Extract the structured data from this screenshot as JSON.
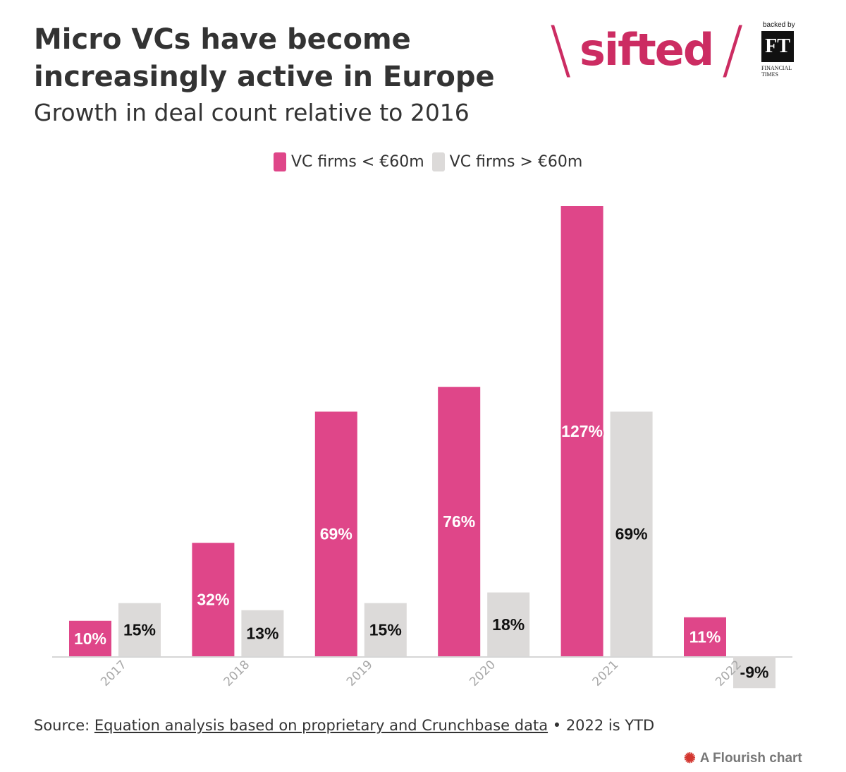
{
  "title": "Micro VCs have become increasingly active in Europe",
  "subtitle": "Growth in deal count relative to 2016",
  "brand": {
    "wordmark": "sifted",
    "backed_by": "backed by",
    "ft_logo": "FT",
    "ft_name": "FINANCIAL TIMES"
  },
  "chart_data": {
    "type": "bar",
    "categories": [
      "2017",
      "2018",
      "2019",
      "2020",
      "2021",
      "2022"
    ],
    "series": [
      {
        "name": "VC firms < €60m",
        "values": [
          10,
          32,
          69,
          76,
          127,
          11
        ],
        "labels": [
          "10%",
          "32%",
          "69%",
          "76%",
          "127%",
          "11%"
        ],
        "color": "#df4689"
      },
      {
        "name": "VC firms > €60m",
        "values": [
          15,
          13,
          15,
          18,
          69,
          -9
        ],
        "labels": [
          "15%",
          "13%",
          "15%",
          "18%",
          "69%",
          "-9%"
        ],
        "color": "#dcdad9"
      }
    ],
    "xlabel": "",
    "ylabel": "",
    "ylim": [
      -9,
      127
    ],
    "grid": false,
    "legend_position": "top-center"
  },
  "source": {
    "prefix": "Source: ",
    "link_text": "Equation analysis based on proprietary and Crunchbase data",
    "suffix": " • 2022 is YTD"
  },
  "footer": {
    "flourish_label": "A Flourish chart"
  }
}
